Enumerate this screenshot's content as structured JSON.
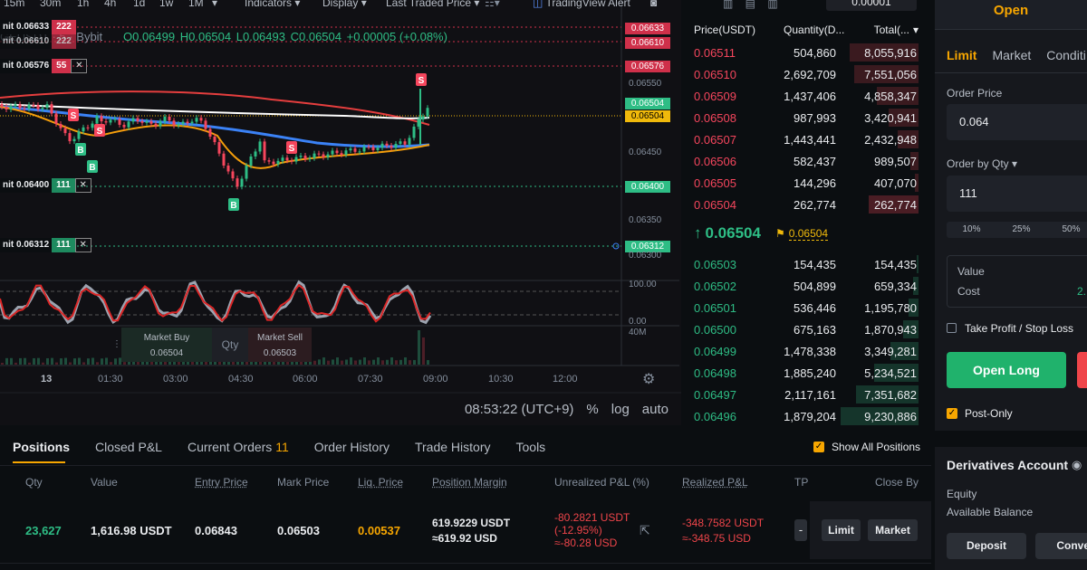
{
  "chart_toolbar": {
    "timeframes": [
      "15m",
      "30m",
      "1h",
      "4h",
      "1d",
      "1w",
      "1M"
    ],
    "indicators": "Indicators",
    "display": "Display",
    "price_source": "Last Traded Price",
    "alert": "TradingView Alert"
  },
  "chart": {
    "symbol_fragment": "GEUSDT · 5 · Bybit",
    "ohlc": {
      "o": "O0.06499",
      "h": "H0.06504",
      "l": "L0.06493",
      "c": "C0.06504",
      "chg": "+0.00005 (+0.08%)"
    },
    "price_axis": [
      "0.06550",
      "0.06450",
      "0.06350",
      "0.06300",
      "100.00",
      "0.00",
      "40M"
    ],
    "price_tags": [
      {
        "v": "0.06633",
        "color": "#cf304a"
      },
      {
        "v": "0.06610",
        "color": "#cf304a"
      },
      {
        "v": "0.06576",
        "color": "#cf304a"
      },
      {
        "v": "0.06504",
        "color": "#2ebd85"
      },
      {
        "v": "0.06504",
        "color": "#f0b90b"
      },
      {
        "v": "0.06400",
        "color": "#2ebd85"
      },
      {
        "v": "0.06312",
        "color": "#2ebd85"
      }
    ],
    "time_axis": [
      "13",
      "01:30",
      "03:00",
      "04:30",
      "06:00",
      "07:30",
      "09:00",
      "10:30",
      "12:00"
    ],
    "order_lines": [
      {
        "label": "nit 0.06633",
        "qty": "222",
        "color": "#cf304a"
      },
      {
        "label": "nit 0.06610",
        "qty": "222",
        "color": "#cf304a"
      },
      {
        "label": "nit 0.06576",
        "qty": "55",
        "color": "#cf304a"
      },
      {
        "label": "nit 0.06400",
        "qty": "111",
        "color": "#2ebd85"
      },
      {
        "label": "nit 0.06312",
        "qty": "111",
        "color": "#2ebd85"
      }
    ],
    "clock": "08:53:22 (UTC+9)",
    "scale_opts": [
      "%",
      "log",
      "auto"
    ],
    "trade_widget": {
      "buy_label": "Market Buy",
      "buy_price": "0.06504",
      "qty": "Qty",
      "sell_label": "Market Sell",
      "sell_price": "0.06503"
    }
  },
  "orderbook": {
    "precision": "0.00001",
    "headers": [
      "Price(USDT)",
      "Quantity(D...",
      "Total(..."
    ],
    "asks": [
      {
        "p": "0.06511",
        "q": "504,860",
        "t": "8,055,916",
        "depth": 0.88
      },
      {
        "p": "0.06510",
        "q": "2,692,709",
        "t": "7,551,056",
        "depth": 0.83
      },
      {
        "p": "0.06509",
        "q": "1,437,406",
        "t": "4,858,347",
        "depth": 0.54
      },
      {
        "p": "0.06508",
        "q": "987,993",
        "t": "3,420,941",
        "depth": 0.38
      },
      {
        "p": "0.06507",
        "q": "1,443,441",
        "t": "2,432,948",
        "depth": 0.27
      },
      {
        "p": "0.06506",
        "q": "582,437",
        "t": "989,507",
        "depth": 0.11
      },
      {
        "p": "0.06505",
        "q": "144,296",
        "t": "407,070",
        "depth": 0.05
      },
      {
        "p": "0.06504",
        "q": "262,774",
        "t": "262,774",
        "depth": 0.64
      }
    ],
    "last_price": "0.06504",
    "mark_price": "0.06504",
    "bids": [
      {
        "p": "0.06503",
        "q": "154,435",
        "t": "154,435",
        "depth": 0.02
      },
      {
        "p": "0.06502",
        "q": "504,899",
        "t": "659,334",
        "depth": 0.07
      },
      {
        "p": "0.06501",
        "q": "536,446",
        "t": "1,195,780",
        "depth": 0.13
      },
      {
        "p": "0.06500",
        "q": "675,163",
        "t": "1,870,943",
        "depth": 0.2
      },
      {
        "p": "0.06499",
        "q": "1,478,338",
        "t": "3,349,281",
        "depth": 0.36
      },
      {
        "p": "0.06498",
        "q": "1,885,240",
        "t": "5,234,521",
        "depth": 0.57
      },
      {
        "p": "0.06497",
        "q": "2,117,161",
        "t": "7,351,682",
        "depth": 0.8
      },
      {
        "p": "0.06496",
        "q": "1,879,204",
        "t": "9,230,886",
        "depth": 1.0
      }
    ]
  },
  "right_panel": {
    "open_label": "Open",
    "order_types": [
      "Limit",
      "Market",
      "Conditi"
    ],
    "order_price_label": "Order Price",
    "order_price": "0.064",
    "qty_label": "Order by Qty",
    "qty_value": "111",
    "pcts": [
      "10%",
      "25%",
      "50%"
    ],
    "value_label": "Value",
    "cost_label": "Cost",
    "cost_value": "2.",
    "tpsl_label": "Take Profit / Stop Loss",
    "open_long": "Open Long",
    "post_only": "Post-Only",
    "account_title": "Derivatives Account",
    "equity": "Equity",
    "available": "Available Balance",
    "deposit": "Deposit",
    "convert": "Conver"
  },
  "positions": {
    "tabs": [
      "Positions",
      "Closed P&L",
      "Current Orders",
      "Order History",
      "Trade History",
      "Tools"
    ],
    "orders_count": "11",
    "show_all": "Show All Positions",
    "columns": [
      "Qty",
      "Value",
      "Entry Price",
      "Mark Price",
      "Liq. Price",
      "Position Margin",
      "Unrealized P&L (%)",
      "Realized P&L",
      "TP",
      "Close By"
    ],
    "row": {
      "qty": "23,627",
      "value": "1,616.98 USDT",
      "entry": "0.06843",
      "mark": "0.06503",
      "liq": "0.00537",
      "margin_1": "619.9229 USDT",
      "margin_2": "≈619.92 USD",
      "upnl_1": "-80.2821 USDT",
      "upnl_2": "(-12.95%)",
      "upnl_3": "≈-80.28 USD",
      "rpnl_1": "-348.7582 USDT",
      "rpnl_2": "≈-348.75 USD",
      "limit": "Limit",
      "market": "Market"
    }
  }
}
